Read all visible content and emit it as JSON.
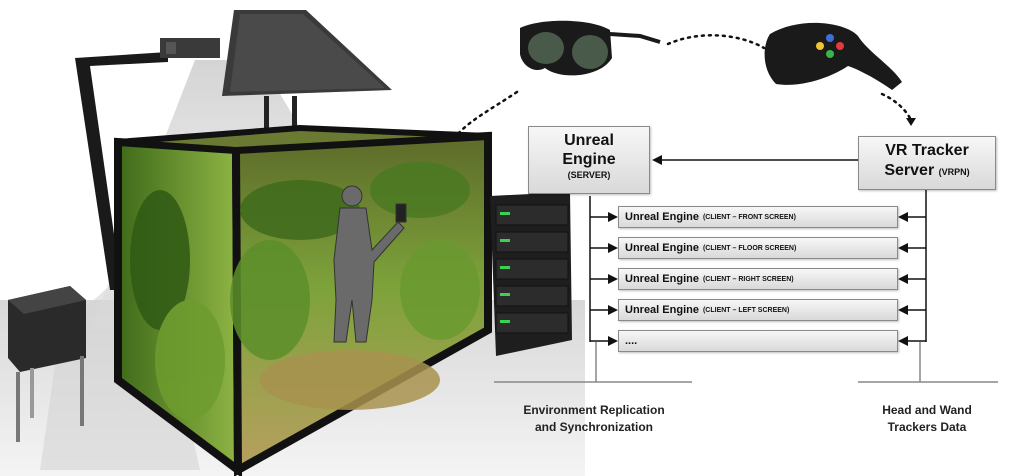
{
  "server": {
    "title_line1": "Unreal",
    "title_line2": "Engine",
    "subtitle": "(SERVER)"
  },
  "tracker": {
    "title_line1": "VR Tracker",
    "title_line2": "Server",
    "subtitle": "(VRPN)"
  },
  "clients": [
    {
      "name": "Unreal Engine",
      "role": "(CLIENT – FRONT SCREEN)"
    },
    {
      "name": "Unreal Engine",
      "role": "(CLIENT – FLOOR  SCREEN)"
    },
    {
      "name": "Unreal Engine",
      "role": "(CLIENT – RIGHT SCREEN)"
    },
    {
      "name": "Unreal Engine",
      "role": "(CLIENT – LEFT SCREEN)"
    },
    {
      "name": "....",
      "role": ""
    }
  ],
  "captions": {
    "left_line1": "Environment Replication",
    "left_line2": "and Synchronization",
    "right_line1": "Head and Wand",
    "right_line2": "Trackers Data"
  },
  "colors": {
    "vegetation": "#4f7a1f",
    "server_led": "#39d353",
    "cave_frame": "#111111"
  }
}
